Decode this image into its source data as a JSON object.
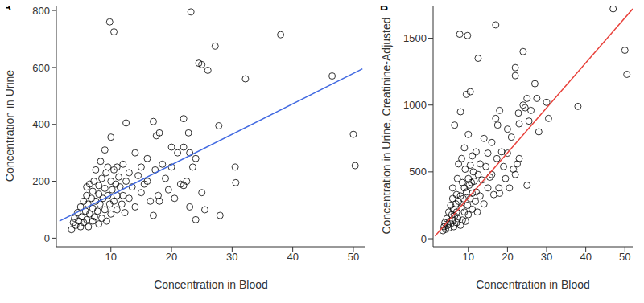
{
  "chart_data": [
    {
      "type": "scatter",
      "title": "A",
      "x_label": "Concentration in Blood",
      "y_label": "Concentration in Urine",
      "color": "#000000",
      "marker": "open_circle",
      "grid": false,
      "xlim": [
        1,
        52
      ],
      "xticks": [
        10,
        20,
        30,
        40,
        50
      ],
      "ylim": [
        -30,
        820
      ],
      "yticks": [
        0,
        200,
        400,
        600,
        800
      ],
      "x": [
        3.5,
        3.8,
        4,
        4.2,
        4.5,
        4.7,
        5,
        5,
        5.2,
        5.5,
        5.5,
        5.8,
        6,
        6,
        6,
        6.2,
        6.3,
        6.5,
        6.5,
        6.8,
        7,
        7,
        7,
        7.2,
        7.3,
        7.5,
        7.5,
        7.8,
        8,
        8,
        8,
        8.2,
        8.3,
        8.5,
        8.5,
        8.7,
        9,
        9,
        9,
        9.2,
        9.3,
        9.5,
        9.5,
        9.8,
        9.8,
        10,
        10,
        10,
        10.2,
        10.5,
        10.5,
        10.5,
        10.8,
        11,
        11,
        11,
        11.3,
        11.5,
        11.8,
        12,
        12,
        12.3,
        12.5,
        12.5,
        13,
        13,
        13.5,
        14,
        14,
        14.5,
        15,
        15,
        15.5,
        16,
        16,
        16.5,
        17,
        17,
        17.3,
        17.5,
        17.8,
        18,
        18,
        18.5,
        19,
        19.5,
        20,
        20,
        20.5,
        21,
        21.5,
        22,
        22,
        22,
        22.5,
        22.8,
        23,
        23,
        23.2,
        23.5,
        24,
        24,
        24.5,
        25,
        25,
        25.5,
        26,
        27.2,
        27.8,
        28,
        30.5,
        30.6,
        32.2,
        38,
        46.5,
        50,
        50.3
      ],
      "values": [
        30,
        55,
        70,
        45,
        90,
        60,
        40,
        110,
        75,
        130,
        55,
        95,
        150,
        65,
        180,
        120,
        40,
        85,
        190,
        140,
        60,
        105,
        165,
        200,
        75,
        130,
        240,
        95,
        50,
        155,
        185,
        120,
        270,
        70,
        210,
        140,
        100,
        175,
        310,
        230,
        60,
        150,
        250,
        760,
        120,
        200,
        355,
        85,
        170,
        725,
        240,
        130,
        190,
        100,
        250,
        150,
        215,
        180,
        120,
        260,
        150,
        90,
        405,
        200,
        230,
        140,
        180,
        300,
        110,
        220,
        250,
        160,
        190,
        280,
        200,
        130,
        410,
        80,
        240,
        360,
        150,
        370,
        130,
        260,
        210,
        170,
        320,
        250,
        140,
        300,
        190,
        420,
        320,
        185,
        200,
        370,
        300,
        110,
        795,
        250,
        280,
        65,
        615,
        610,
        160,
        100,
        590,
        675,
        395,
        80,
        250,
        195,
        560,
        715,
        570,
        365,
        255
      ],
      "trend": {
        "x": [
          1.5,
          51.5
        ],
        "values": [
          60,
          595
        ],
        "color": "#4169e1"
      }
    },
    {
      "type": "scatter",
      "title": "B",
      "x_label": "Concentration in Blood",
      "y_label": "Concentration in Urine, Creatinine-Adjusted",
      "color": "#000000",
      "marker": "open_circle",
      "grid": false,
      "xlim": [
        1,
        52
      ],
      "xticks": [
        10,
        20,
        30,
        40,
        50
      ],
      "ylim": [
        -60,
        1750
      ],
      "yticks": [
        0,
        500,
        1000,
        1500
      ],
      "x": [
        3.5,
        3.8,
        4,
        4.2,
        4.5,
        4.7,
        5,
        5,
        5.2,
        5.5,
        5.5,
        5.8,
        6,
        6,
        6,
        6.2,
        6.3,
        6.5,
        6.5,
        6.8,
        7,
        7,
        7,
        7.2,
        7.3,
        7.5,
        7.5,
        7.8,
        8,
        8,
        8,
        8.2,
        8.3,
        8.5,
        8.5,
        8.7,
        9,
        9,
        9,
        9.2,
        9.3,
        9.5,
        9.5,
        9.8,
        9.8,
        10,
        10,
        10,
        10.2,
        10.5,
        10.5,
        10.5,
        10.8,
        11,
        11,
        11,
        11.3,
        11.5,
        11.8,
        12,
        12,
        12.3,
        12.5,
        12.5,
        13,
        13,
        13.5,
        14,
        14,
        14.5,
        15,
        15,
        15.5,
        16,
        16,
        16.5,
        17,
        17,
        17.3,
        17.5,
        17.8,
        18,
        18,
        18.5,
        19,
        19.5,
        20,
        20,
        20.5,
        21,
        21.5,
        22,
        22,
        22,
        22.5,
        22.8,
        23,
        23,
        24,
        24,
        24.5,
        25,
        25,
        25.5,
        26,
        27,
        27.5,
        28,
        30,
        30.5,
        38,
        47,
        50,
        50.5
      ],
      "values": [
        60,
        90,
        120,
        70,
        150,
        100,
        80,
        200,
        130,
        250,
        110,
        180,
        300,
        140,
        380,
        220,
        90,
        170,
        850,
        260,
        120,
        200,
        330,
        450,
        150,
        280,
        560,
        1530,
        100,
        320,
        950,
        230,
        600,
        140,
        420,
        300,
        200,
        380,
        680,
        520,
        130,
        350,
        1080,
        1520,
        250,
        450,
        780,
        180,
        400,
        1100,
        550,
        300,
        420,
        220,
        620,
        340,
        500,
        430,
        280,
        650,
        350,
        200,
        1350,
        480,
        560,
        320,
        440,
        750,
        260,
        540,
        640,
        380,
        460,
        720,
        480,
        330,
        1600,
        900,
        600,
        850,
        380,
        960,
        340,
        650,
        540,
        450,
        820,
        640,
        380,
        760,
        520,
        1220,
        1280,
        480,
        560,
        940,
        860,
        600,
        1000,
        1400,
        980,
        400,
        1050,
        880,
        960,
        1160,
        1050,
        800,
        1020,
        900,
        990,
        1720,
        1410,
        1230
      ],
      "trend": {
        "x": [
          1.5,
          52
        ],
        "values": [
          20,
          1720
        ],
        "color": "#e8403a"
      }
    }
  ]
}
